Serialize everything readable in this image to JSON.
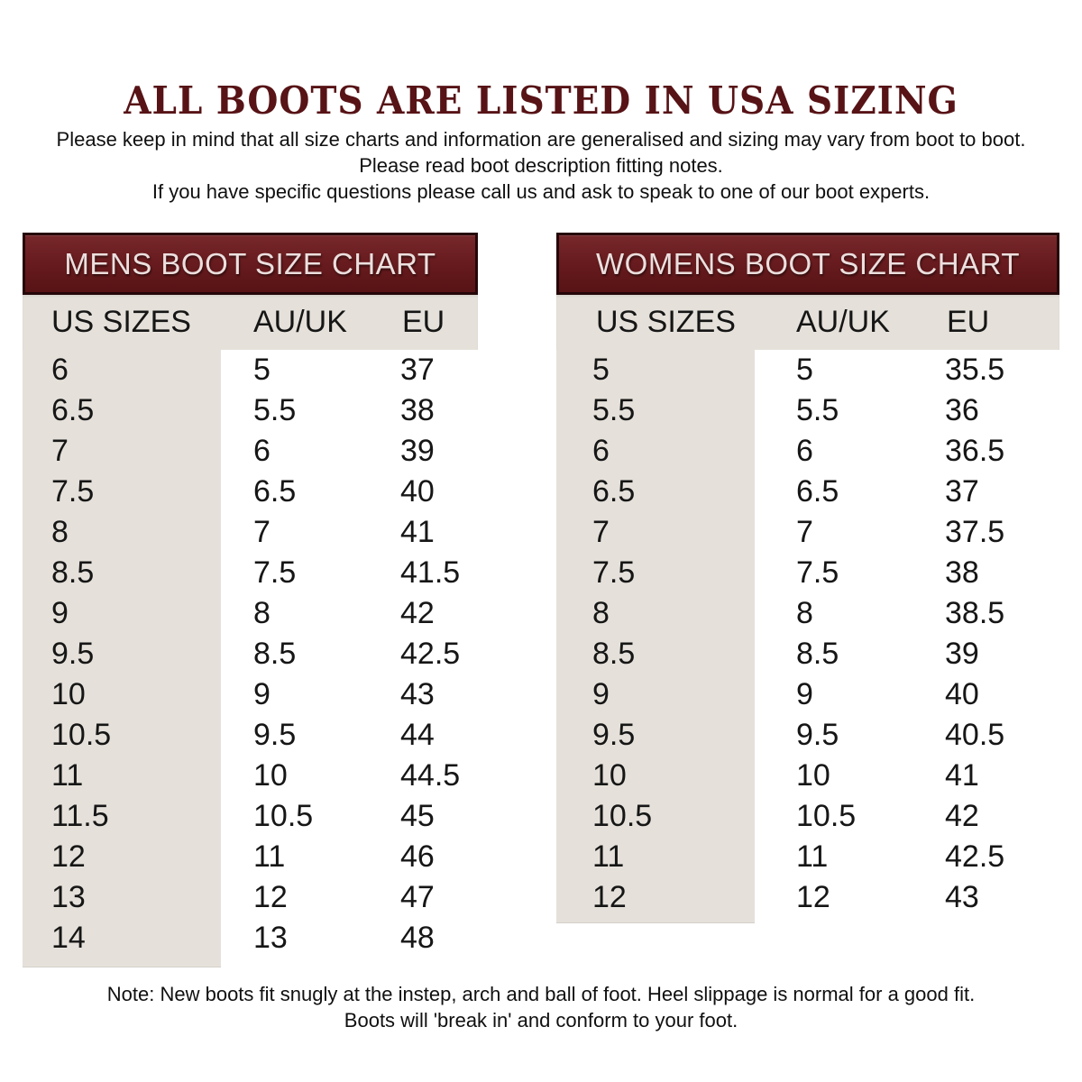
{
  "header": {
    "title": "ALL BOOTS ARE LISTED IN USA SIZING",
    "intro_lines": [
      "Please keep in mind that all size charts and information are generalised and sizing may vary from boot to boot.",
      "Please read boot description fitting notes.",
      "If you have specific questions please call us and ask to speak to one of our boot experts."
    ]
  },
  "tables": [
    {
      "id": "mens",
      "title": "MENS BOOT SIZE CHART",
      "columns": [
        "US SIZES",
        "AU/UK",
        "EU"
      ],
      "rows": [
        [
          "6",
          "5",
          "37"
        ],
        [
          "6.5",
          "5.5",
          "38"
        ],
        [
          "7",
          "6",
          "39"
        ],
        [
          "7.5",
          "6.5",
          "40"
        ],
        [
          "8",
          "7",
          "41"
        ],
        [
          "8.5",
          "7.5",
          "41.5"
        ],
        [
          "9",
          "8",
          "42"
        ],
        [
          "9.5",
          "8.5",
          "42.5"
        ],
        [
          "10",
          "9",
          "43"
        ],
        [
          "10.5",
          "9.5",
          "44"
        ],
        [
          "11",
          "10",
          "44.5"
        ],
        [
          "11.5",
          "10.5",
          "45"
        ],
        [
          "12",
          "11",
          "46"
        ],
        [
          "13",
          "12",
          "47"
        ],
        [
          "14",
          "13",
          "48"
        ]
      ]
    },
    {
      "id": "womens",
      "title": "WOMENS BOOT SIZE CHART",
      "columns": [
        "US SIZES",
        "AU/UK",
        "EU"
      ],
      "rows": [
        [
          "5",
          "5",
          "35.5"
        ],
        [
          "5.5",
          "5.5",
          "36"
        ],
        [
          "6",
          "6",
          "36.5"
        ],
        [
          "6.5",
          "6.5",
          "37"
        ],
        [
          "7",
          "7",
          "37.5"
        ],
        [
          "7.5",
          "7.5",
          "38"
        ],
        [
          "8",
          "8",
          "38.5"
        ],
        [
          "8.5",
          "8.5",
          "39"
        ],
        [
          "9",
          "9",
          "40"
        ],
        [
          "9.5",
          "9.5",
          "40.5"
        ],
        [
          "10",
          "10",
          "41"
        ],
        [
          "10.5",
          "10.5",
          "42"
        ],
        [
          "11",
          "11",
          "42.5"
        ],
        [
          "12",
          "12",
          "43"
        ]
      ]
    }
  ],
  "footer": {
    "note_lines": [
      "Note: New boots fit snugly at the instep, arch and ball of foot. Heel slippage is normal for a good fit.",
      "Boots will 'break in' and conform to your foot."
    ]
  },
  "colors": {
    "maroon": "#691c1f",
    "maroon_border": "#250709",
    "bar_text": "#ecdfde",
    "beige": "#e5e1da",
    "title_text": "#571316",
    "body_text": "#101010"
  }
}
